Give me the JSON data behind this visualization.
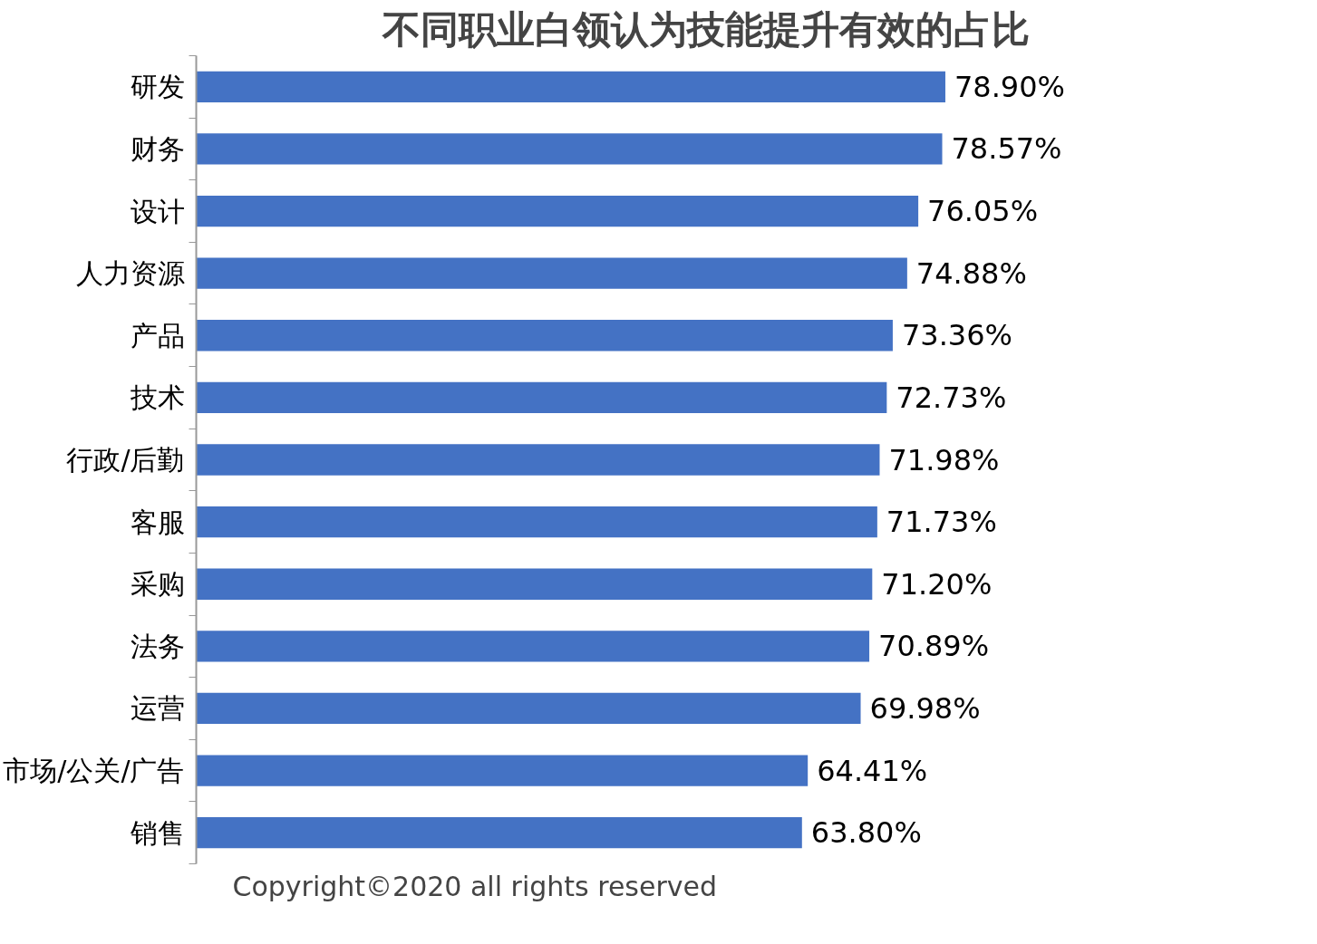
{
  "chart_data": {
    "type": "bar",
    "orientation": "horizontal",
    "title": "不同职业白领认为技能提升有效的占比",
    "categories": [
      "研发",
      "财务",
      "设计",
      "人力资源",
      "产品",
      "技术",
      "行政/后勤",
      "客服",
      "采购",
      "法务",
      "运营",
      "市场/公关/广告",
      "销售"
    ],
    "values": [
      78.9,
      78.57,
      76.05,
      74.88,
      73.36,
      72.73,
      71.98,
      71.73,
      71.2,
      70.89,
      69.98,
      64.41,
      63.8
    ],
    "value_labels": [
      "78.90%",
      "78.57%",
      "76.05%",
      "74.88%",
      "73.36%",
      "72.73%",
      "71.98%",
      "71.73%",
      "71.20%",
      "70.89%",
      "69.98%",
      "64.41%",
      "63.80%"
    ],
    "color": "#4472c4",
    "grid": false,
    "tick_labels": "y",
    "annotations": [
      "Copyright©2020 all rights reserved"
    ]
  }
}
